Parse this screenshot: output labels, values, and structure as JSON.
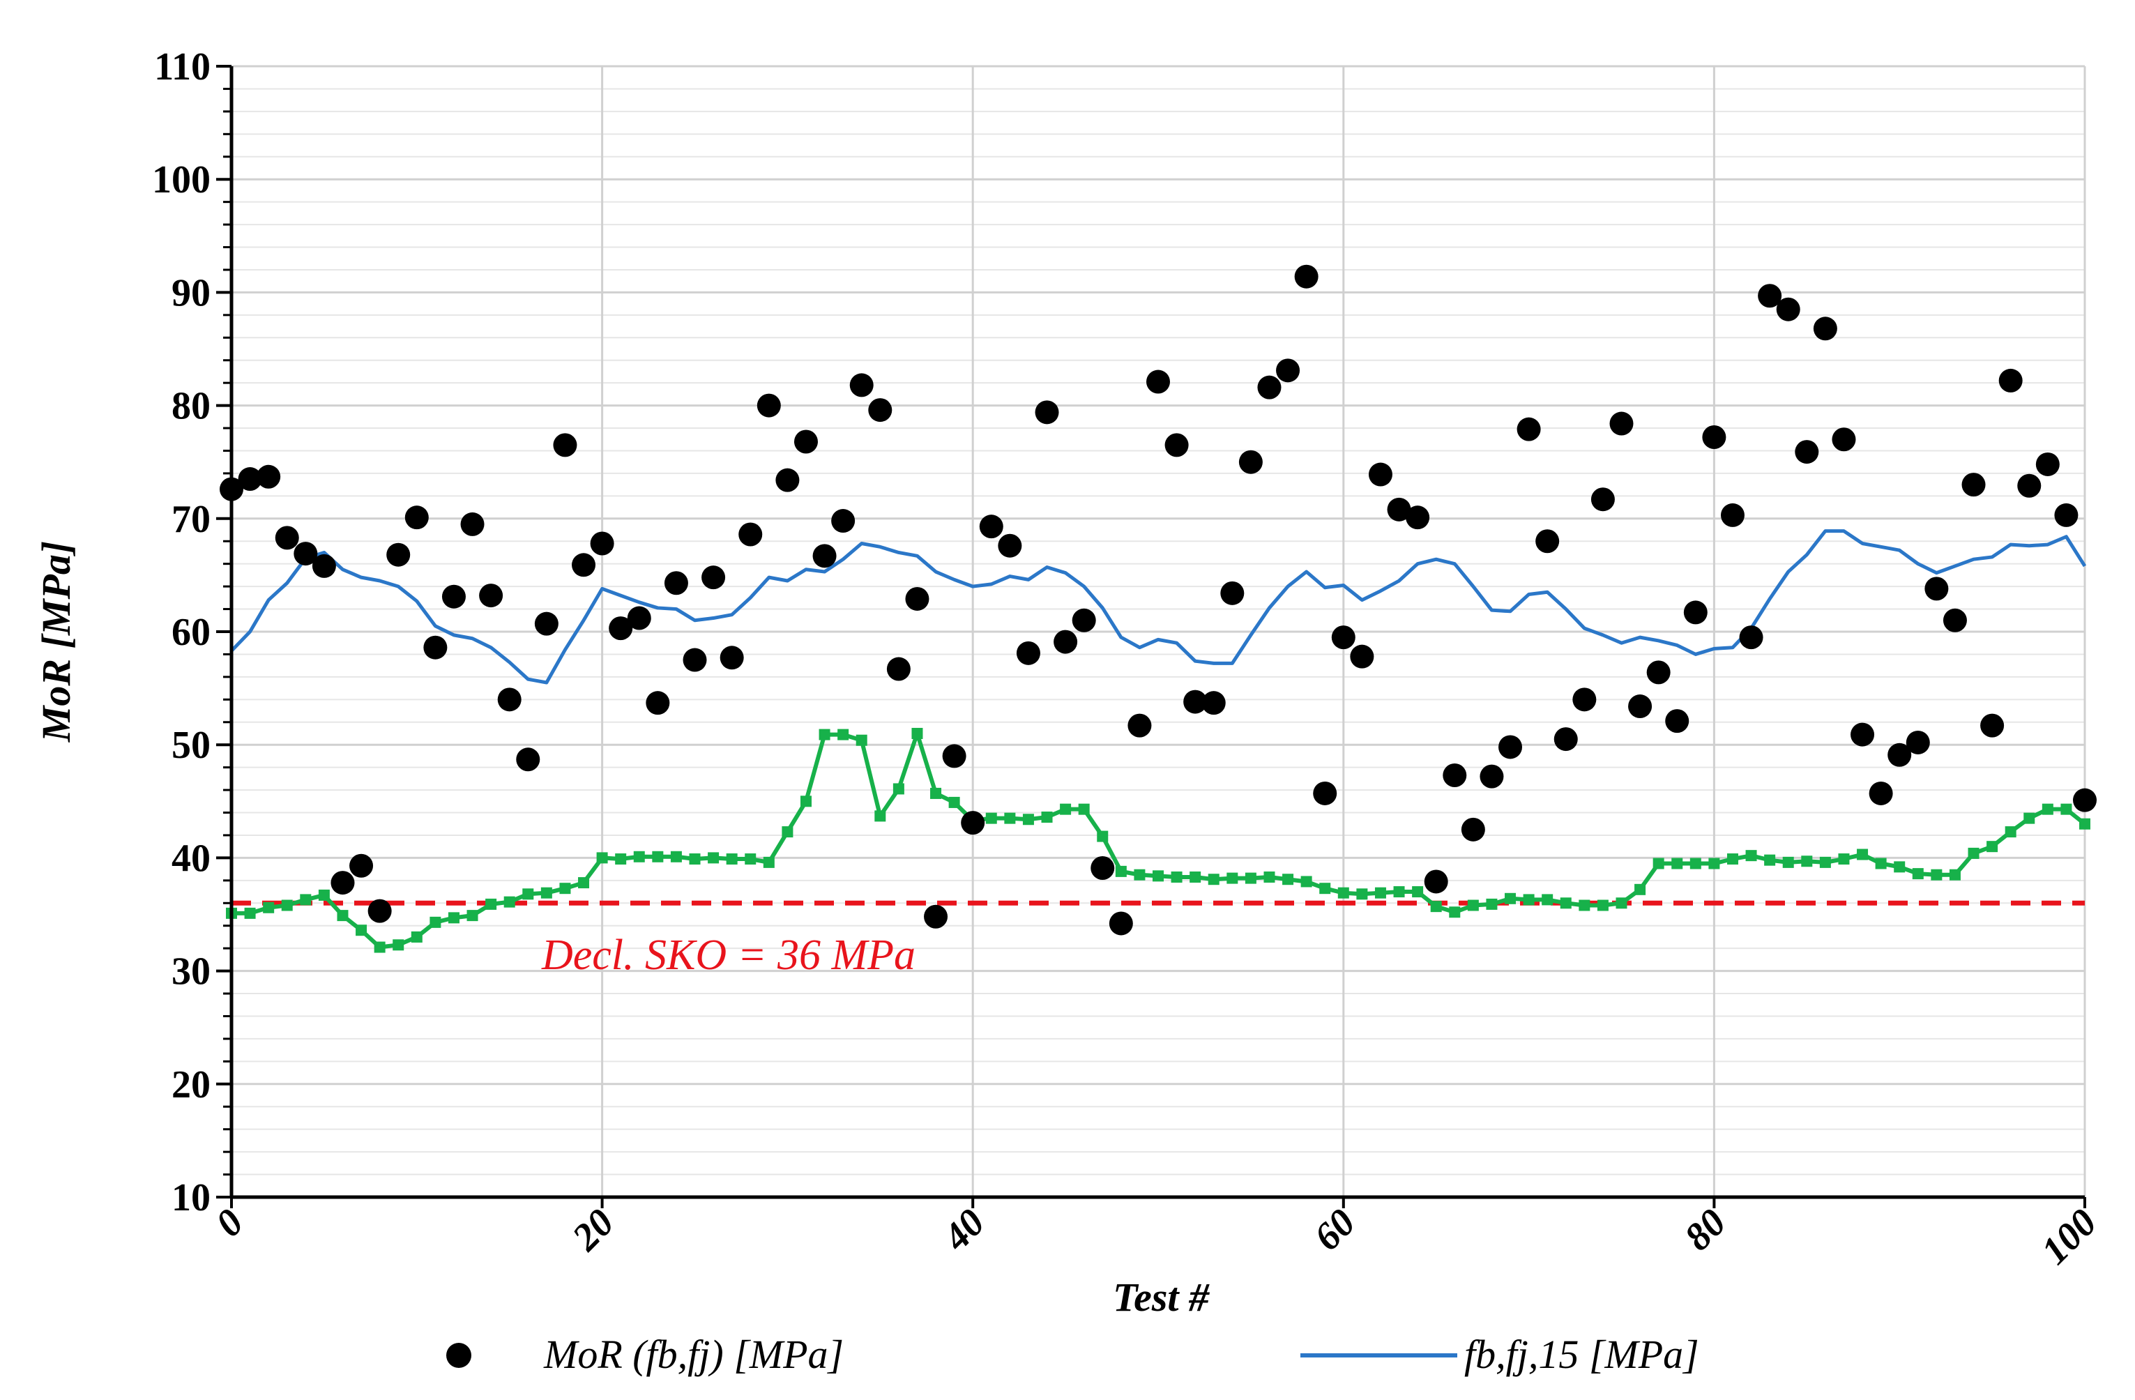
{
  "colors": {
    "mor_points": "#000000",
    "fb_fj_15_line": "#2b77c8",
    "green_series": "#17b14a",
    "declared_line": "#e8141c",
    "grid_major": "#d0d0d0",
    "grid_minor": "#e6e6e6"
  },
  "chart_data": {
    "type": "scatter",
    "xlabel": "Test #",
    "ylabel": "MoR [MPa]",
    "xlim": [
      0,
      100
    ],
    "ylim": [
      10,
      110
    ],
    "x_ticks": [
      "0",
      "20",
      "40",
      "60",
      "80",
      "100"
    ],
    "y_ticks": [
      "10",
      "20",
      "30",
      "40",
      "50",
      "60",
      "70",
      "80",
      "90",
      "100",
      "110"
    ],
    "grid": true,
    "legend_position": "bottom",
    "annotation": "Decl. SKO = 36 MPa",
    "declared_value": 36,
    "series": [
      {
        "name": "MoR (fb,fj) [MPa]",
        "kind": "scatter",
        "x": [
          0,
          1,
          2,
          3,
          4,
          5,
          6,
          7,
          8,
          9,
          10,
          11,
          12,
          13,
          14,
          15,
          16,
          17,
          18,
          19,
          20,
          21,
          22,
          23,
          24,
          25,
          26,
          27,
          28,
          29,
          30,
          31,
          32,
          33,
          34,
          35,
          36,
          37,
          38,
          39,
          40,
          41,
          42,
          43,
          44,
          45,
          46,
          47,
          48,
          49,
          50,
          51,
          52,
          53,
          54,
          55,
          56,
          57,
          58,
          59,
          60,
          61,
          62,
          63,
          64,
          65,
          66,
          67,
          68,
          69,
          70,
          71,
          72,
          73,
          74,
          75,
          76,
          77,
          78,
          79,
          80,
          81,
          82,
          83,
          84,
          85,
          86,
          87,
          88,
          89,
          90,
          91,
          92,
          93,
          94,
          95,
          96,
          97,
          98,
          99,
          100
        ],
        "y": [
          72.6,
          73.5,
          73.7,
          68.3,
          66.9,
          65.8,
          37.8,
          39.3,
          35.3,
          66.8,
          70.1,
          58.6,
          63.1,
          69.5,
          63.2,
          54.0,
          48.7,
          60.7,
          76.5,
          65.9,
          67.8,
          60.3,
          61.2,
          53.7,
          64.3,
          57.5,
          64.8,
          57.7,
          68.6,
          80.0,
          73.4,
          76.8,
          66.7,
          69.8,
          81.8,
          79.6,
          56.7,
          62.9,
          34.8,
          49.0,
          43.1,
          69.3,
          67.6,
          58.1,
          79.4,
          59.1,
          61.0,
          39.1,
          34.2,
          51.7,
          82.1,
          76.5,
          53.8,
          53.7,
          63.4,
          75.0,
          81.6,
          83.1,
          91.4,
          45.7,
          59.5,
          57.8,
          73.9,
          70.8,
          70.1,
          37.9,
          47.3,
          42.5,
          47.2,
          49.8,
          77.9,
          68.0,
          50.5,
          54.0,
          71.7,
          78.4,
          53.4,
          56.4,
          52.1,
          61.7,
          77.2,
          70.3,
          59.5,
          89.7,
          88.5,
          75.9,
          86.8,
          77.0,
          50.9,
          45.7,
          49.1,
          50.2,
          63.8,
          61.0,
          73.0,
          51.7,
          82.2,
          72.9,
          74.8,
          70.3,
          45.1
        ]
      },
      {
        "name": "fb,fj,15 [MPa]",
        "kind": "line",
        "x": [
          0,
          1,
          2,
          3,
          4,
          5,
          6,
          7,
          8,
          9,
          10,
          11,
          12,
          13,
          14,
          15,
          16,
          17,
          18,
          19,
          20,
          21,
          22,
          23,
          24,
          25,
          26,
          27,
          28,
          29,
          30,
          31,
          32,
          33,
          34,
          35,
          36,
          37,
          38,
          39,
          40,
          41,
          42,
          43,
          44,
          45,
          46,
          47,
          48,
          49,
          50,
          51,
          52,
          53,
          54,
          55,
          56,
          57,
          58,
          59,
          60,
          61,
          62,
          63,
          64,
          65,
          66,
          67,
          68,
          69,
          70,
          71,
          72,
          73,
          74,
          75,
          76,
          77,
          78,
          79,
          80,
          81,
          82,
          83,
          84,
          85,
          86,
          87,
          88,
          89,
          90,
          91,
          92,
          93,
          94,
          95,
          96,
          97,
          98,
          99,
          100
        ],
        "y": [
          58.3,
          60.0,
          62.8,
          64.3,
          66.5,
          67.0,
          65.5,
          64.8,
          64.5,
          64.0,
          62.7,
          60.5,
          59.7,
          59.4,
          58.6,
          57.3,
          55.8,
          55.5,
          58.4,
          61.0,
          63.8,
          63.2,
          62.6,
          62.1,
          62.0,
          61.0,
          61.2,
          61.5,
          63.0,
          64.8,
          64.5,
          65.5,
          65.3,
          66.4,
          67.8,
          67.5,
          67.0,
          66.7,
          65.3,
          64.6,
          64.0,
          64.2,
          64.9,
          64.6,
          65.7,
          65.2,
          64.0,
          62.1,
          59.5,
          58.6,
          59.3,
          59.0,
          57.4,
          57.2,
          57.2,
          59.7,
          62.1,
          64.0,
          65.3,
          63.9,
          64.1,
          62.8,
          63.6,
          64.5,
          66.0,
          66.4,
          66.0,
          64.0,
          61.9,
          61.8,
          63.3,
          63.5,
          62.0,
          60.3,
          59.7,
          59.0,
          59.5,
          59.2,
          58.8,
          58.0,
          58.5,
          58.6,
          60.3,
          62.9,
          65.3,
          66.8,
          68.9,
          68.9,
          67.8,
          67.5,
          67.2,
          66.0,
          65.2,
          65.8,
          66.4,
          66.6,
          67.7,
          67.6,
          67.7,
          68.4,
          65.8
        ]
      },
      {
        "kind": "line-with-markers",
        "x": [
          0,
          1,
          2,
          3,
          4,
          5,
          6,
          7,
          8,
          9,
          10,
          11,
          12,
          13,
          14,
          15,
          16,
          17,
          18,
          19,
          20,
          21,
          22,
          23,
          24,
          25,
          26,
          27,
          28,
          29,
          30,
          31,
          32,
          33,
          34,
          35,
          36,
          37,
          38,
          39,
          40,
          41,
          42,
          43,
          44,
          45,
          46,
          47,
          48,
          49,
          50,
          51,
          52,
          53,
          54,
          55,
          56,
          57,
          58,
          59,
          60,
          61,
          62,
          63,
          64,
          65,
          66,
          67,
          68,
          69,
          70,
          71,
          72,
          73,
          74,
          75,
          76,
          77,
          78,
          79,
          80,
          81,
          82,
          83,
          84,
          85,
          86,
          87,
          88,
          89,
          90,
          91,
          92,
          93,
          94,
          95,
          96,
          97,
          98,
          99,
          100
        ],
        "y": [
          35.1,
          35.1,
          35.6,
          35.8,
          36.3,
          36.7,
          34.9,
          33.6,
          32.1,
          32.3,
          33.0,
          34.3,
          34.7,
          34.9,
          35.9,
          36.1,
          36.8,
          36.9,
          37.3,
          37.8,
          40.0,
          39.9,
          40.1,
          40.1,
          40.1,
          39.9,
          40.0,
          39.9,
          39.9,
          39.6,
          42.3,
          45.0,
          50.9,
          50.9,
          50.4,
          43.7,
          46.1,
          51.0,
          45.7,
          44.9,
          43.3,
          43.5,
          43.5,
          43.4,
          43.6,
          44.3,
          44.3,
          41.9,
          38.8,
          38.5,
          38.4,
          38.3,
          38.3,
          38.1,
          38.2,
          38.2,
          38.3,
          38.1,
          37.9,
          37.3,
          36.9,
          36.8,
          36.9,
          37.0,
          37.0,
          35.7,
          35.2,
          35.8,
          35.9,
          36.4,
          36.3,
          36.3,
          36.0,
          35.8,
          35.8,
          36.0,
          37.2,
          39.5,
          39.5,
          39.5,
          39.5,
          39.9,
          40.2,
          39.8,
          39.6,
          39.7,
          39.6,
          39.9,
          40.3,
          39.5,
          39.2,
          38.6,
          38.5,
          38.5,
          40.4,
          41.0,
          42.3,
          43.5,
          44.3,
          44.3,
          43.0
        ]
      }
    ]
  }
}
